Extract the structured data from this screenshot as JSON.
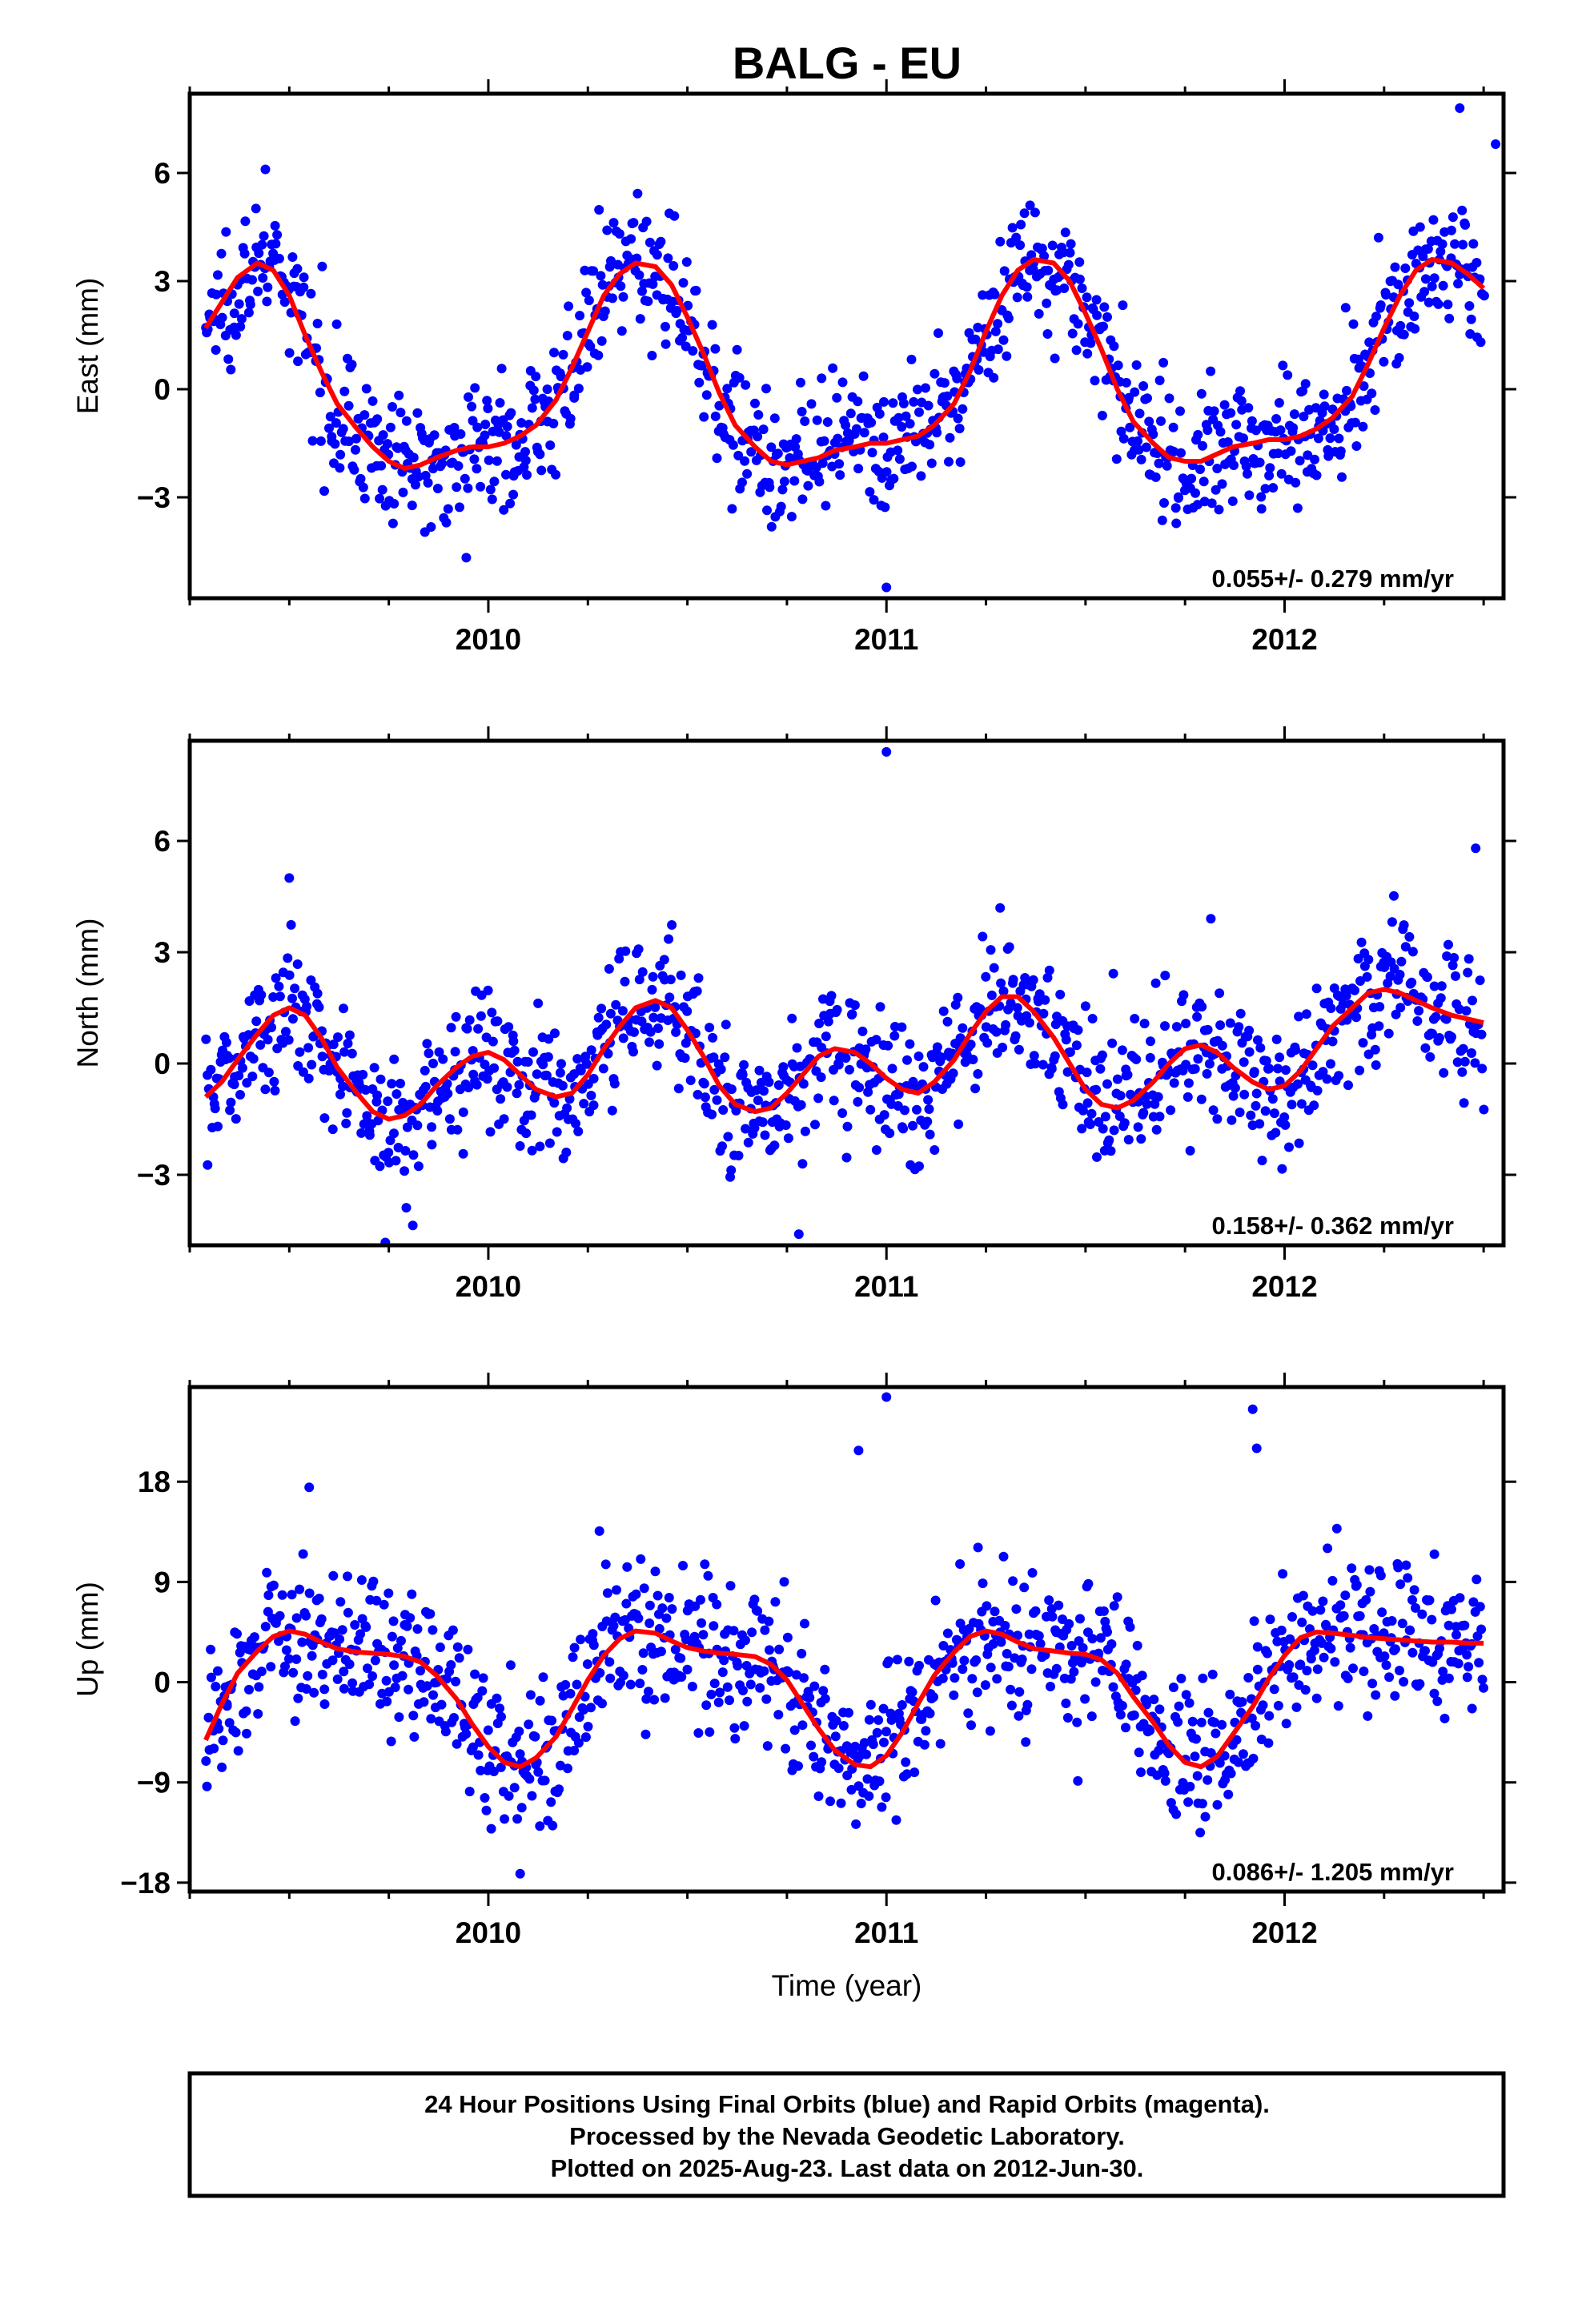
{
  "title": "BALG - EU",
  "footer": {
    "lines": [
      "24 Hour Positions Using Final Orbits (blue) and Rapid Orbits (magenta).",
      "Processed by the Nevada Geodetic Laboratory.",
      "Plotted on 2025-Aug-23. Last data on 2012-Jun-30."
    ]
  },
  "colors": {
    "points": "#0000ff",
    "fit": "#ff0000",
    "frame": "#000000"
  },
  "chart_data": [
    {
      "type": "scatter",
      "ylabel": "East (mm)",
      "xlabel": "",
      "xlim": [
        2009.25,
        2012.55
      ],
      "ylim": [
        -5.8,
        8.2
      ],
      "yticks": [
        -3,
        0,
        3,
        6
      ],
      "ytick_labels": [
        "−3",
        "0",
        "3",
        "6"
      ],
      "xticks": [
        2010,
        2011,
        2012
      ],
      "xtick_labels": [
        "2010",
        "2011",
        "2012"
      ],
      "rate_label": "0.055+/- 0.279 mm/yr",
      "fit_x": [
        2009.29,
        2009.33,
        2009.37,
        2009.42,
        2009.46,
        2009.5,
        2009.54,
        2009.58,
        2009.62,
        2009.67,
        2009.71,
        2009.75,
        2009.79,
        2009.83,
        2009.87,
        2009.92,
        2009.96,
        2010.0,
        2010.04,
        2010.08,
        2010.12,
        2010.17,
        2010.21,
        2010.25,
        2010.29,
        2010.33,
        2010.37,
        2010.42,
        2010.46,
        2010.5,
        2010.54,
        2010.58,
        2010.62,
        2010.67,
        2010.71,
        2010.75,
        2010.79,
        2010.83,
        2010.87,
        2010.92,
        2010.96,
        2011.0,
        2011.04,
        2011.08,
        2011.12,
        2011.17,
        2011.21,
        2011.25,
        2011.29,
        2011.33,
        2011.37,
        2011.42,
        2011.46,
        2011.5,
        2011.54,
        2011.58,
        2011.62,
        2011.67,
        2011.71,
        2011.75,
        2011.79,
        2011.83,
        2011.87,
        2011.92,
        2011.96,
        2012.0,
        2012.04,
        2012.08,
        2012.12,
        2012.17,
        2012.21,
        2012.25,
        2012.29,
        2012.33,
        2012.37,
        2012.42,
        2012.46,
        2012.5
      ],
      "fit_y": [
        1.7,
        2.4,
        3.1,
        3.5,
        3.3,
        2.6,
        1.5,
        0.5,
        -0.4,
        -1.1,
        -1.6,
        -2.0,
        -2.2,
        -2.1,
        -1.9,
        -1.7,
        -1.6,
        -1.6,
        -1.5,
        -1.3,
        -1.0,
        -0.3,
        0.6,
        1.6,
        2.6,
        3.2,
        3.5,
        3.4,
        2.9,
        2.0,
        1.0,
        -0.1,
        -1.0,
        -1.6,
        -2.0,
        -2.1,
        -2.0,
        -1.9,
        -1.7,
        -1.6,
        -1.5,
        -1.5,
        -1.4,
        -1.3,
        -1.0,
        -0.4,
        0.5,
        1.6,
        2.6,
        3.3,
        3.6,
        3.5,
        3.0,
        2.1,
        1.1,
        0.0,
        -0.9,
        -1.5,
        -1.9,
        -2.0,
        -2.0,
        -1.8,
        -1.6,
        -1.5,
        -1.4,
        -1.4,
        -1.3,
        -1.1,
        -0.8,
        -0.2,
        0.7,
        1.7,
        2.6,
        3.3,
        3.6,
        3.5,
        3.2,
        2.8
      ],
      "outliers_x": [
        2009.44,
        2011.0,
        2012.44,
        2012.53
      ],
      "outliers_y": [
        6.1,
        -5.5,
        7.8,
        6.8
      ],
      "noise_sd": 0.9
    },
    {
      "type": "scatter",
      "ylabel": "North (mm)",
      "xlabel": "",
      "xlim": [
        2009.25,
        2012.55
      ],
      "ylim": [
        -4.9,
        8.7
      ],
      "yticks": [
        -3,
        0,
        3,
        6
      ],
      "ytick_labels": [
        "−3",
        "0",
        "3",
        "6"
      ],
      "xticks": [
        2010,
        2011,
        2012
      ],
      "xtick_labels": [
        "2010",
        "2011",
        "2012"
      ],
      "rate_label": "0.158+/- 0.362 mm/yr",
      "fit_x": [
        2009.29,
        2009.33,
        2009.37,
        2009.42,
        2009.46,
        2009.5,
        2009.54,
        2009.58,
        2009.62,
        2009.67,
        2009.71,
        2009.75,
        2009.79,
        2009.83,
        2009.87,
        2009.92,
        2009.96,
        2010.0,
        2010.04,
        2010.08,
        2010.12,
        2010.17,
        2010.21,
        2010.25,
        2010.29,
        2010.33,
        2010.37,
        2010.42,
        2010.46,
        2010.5,
        2010.54,
        2010.58,
        2010.62,
        2010.67,
        2010.71,
        2010.75,
        2010.79,
        2010.83,
        2010.87,
        2010.92,
        2010.96,
        2011.0,
        2011.04,
        2011.08,
        2011.12,
        2011.17,
        2011.21,
        2011.25,
        2011.29,
        2011.33,
        2011.37,
        2011.42,
        2011.46,
        2011.5,
        2011.54,
        2011.58,
        2011.62,
        2011.67,
        2011.71,
        2011.75,
        2011.79,
        2011.83,
        2011.87,
        2011.92,
        2011.96,
        2012.0,
        2012.04,
        2012.08,
        2012.12,
        2012.17,
        2012.21,
        2012.25,
        2012.29,
        2012.33,
        2012.37,
        2012.42,
        2012.46,
        2012.5
      ],
      "fit_y": [
        -0.9,
        -0.5,
        0.1,
        0.8,
        1.3,
        1.5,
        1.3,
        0.7,
        -0.1,
        -0.8,
        -1.3,
        -1.5,
        -1.4,
        -1.1,
        -0.6,
        -0.1,
        0.2,
        0.3,
        0.1,
        -0.3,
        -0.7,
        -0.9,
        -0.8,
        -0.3,
        0.4,
        1.0,
        1.5,
        1.7,
        1.5,
        0.9,
        0.2,
        -0.6,
        -1.1,
        -1.3,
        -1.2,
        -0.8,
        -0.3,
        0.2,
        0.4,
        0.3,
        0.0,
        -0.4,
        -0.7,
        -0.8,
        -0.5,
        0.1,
        0.8,
        1.4,
        1.8,
        1.8,
        1.4,
        0.7,
        0.0,
        -0.7,
        -1.1,
        -1.2,
        -1.0,
        -0.5,
        0.0,
        0.4,
        0.5,
        0.3,
        -0.1,
        -0.5,
        -0.7,
        -0.6,
        -0.2,
        0.4,
        1.0,
        1.5,
        1.9,
        2.0,
        1.9,
        1.7,
        1.5,
        1.3,
        1.2,
        1.1
      ],
      "outliers_x": [
        2011.0,
        2009.5,
        2012.48,
        2010.78
      ],
      "outliers_y": [
        8.4,
        5.0,
        5.8,
        -4.6
      ],
      "noise_sd": 0.95
    },
    {
      "type": "scatter",
      "ylabel": "Up (mm)",
      "xlabel": "Time (year)",
      "xlim": [
        2009.25,
        2012.55
      ],
      "ylim": [
        -18.8,
        26.5
      ],
      "yticks": [
        -18,
        -9,
        0,
        9,
        18
      ],
      "ytick_labels": [
        "−18",
        "−9",
        "0",
        "9",
        "18"
      ],
      "xticks": [
        2010,
        2011,
        2012
      ],
      "xtick_labels": [
        "2010",
        "2011",
        "2012"
      ],
      "rate_label": "0.086+/- 1.205 mm/yr",
      "fit_x": [
        2009.29,
        2009.33,
        2009.37,
        2009.42,
        2009.46,
        2009.5,
        2009.54,
        2009.58,
        2009.62,
        2009.67,
        2009.71,
        2009.75,
        2009.79,
        2009.83,
        2009.87,
        2009.92,
        2009.96,
        2010.0,
        2010.04,
        2010.08,
        2010.12,
        2010.17,
        2010.21,
        2010.25,
        2010.29,
        2010.33,
        2010.37,
        2010.42,
        2010.46,
        2010.5,
        2010.54,
        2010.58,
        2010.62,
        2010.67,
        2010.71,
        2010.75,
        2010.79,
        2010.83,
        2010.87,
        2010.92,
        2010.96,
        2011.0,
        2011.04,
        2011.08,
        2011.12,
        2011.17,
        2011.21,
        2011.25,
        2011.29,
        2011.33,
        2011.37,
        2011.42,
        2011.46,
        2011.5,
        2011.54,
        2011.58,
        2011.62,
        2011.67,
        2011.71,
        2011.75,
        2011.79,
        2011.83,
        2011.87,
        2011.92,
        2011.96,
        2012.0,
        2012.04,
        2012.08,
        2012.12,
        2012.17,
        2012.21,
        2012.25,
        2012.29,
        2012.33,
        2012.37,
        2012.42,
        2012.46,
        2012.5
      ],
      "fit_y": [
        -5.2,
        -2.0,
        0.8,
        2.8,
        4.1,
        4.6,
        4.3,
        3.6,
        3.0,
        2.7,
        2.6,
        2.5,
        2.3,
        1.8,
        0.6,
        -1.5,
        -3.8,
        -5.8,
        -7.2,
        -7.6,
        -6.8,
        -4.9,
        -2.4,
        0.2,
        2.4,
        3.9,
        4.6,
        4.4,
        3.7,
        3.1,
        2.8,
        2.6,
        2.5,
        2.3,
        1.6,
        0.2,
        -2.0,
        -4.2,
        -6.1,
        -7.4,
        -7.6,
        -6.6,
        -4.5,
        -1.9,
        0.6,
        2.7,
        4.1,
        4.6,
        4.3,
        3.6,
        3.0,
        2.8,
        2.6,
        2.5,
        2.0,
        0.8,
        -1.3,
        -3.6,
        -5.7,
        -7.2,
        -7.6,
        -6.7,
        -4.7,
        -2.2,
        0.3,
        2.4,
        4.0,
        4.5,
        4.4,
        4.2,
        4.0,
        3.9,
        3.8,
        3.7,
        3.6,
        3.6,
        3.5,
        3.5
      ],
      "outliers_x": [
        2011.0,
        2009.55,
        2011.92,
        2011.93,
        2010.08,
        2010.93
      ],
      "outliers_y": [
        25.6,
        17.5,
        24.5,
        21.0,
        -17.2,
        20.8
      ],
      "noise_sd": 3.4
    }
  ]
}
